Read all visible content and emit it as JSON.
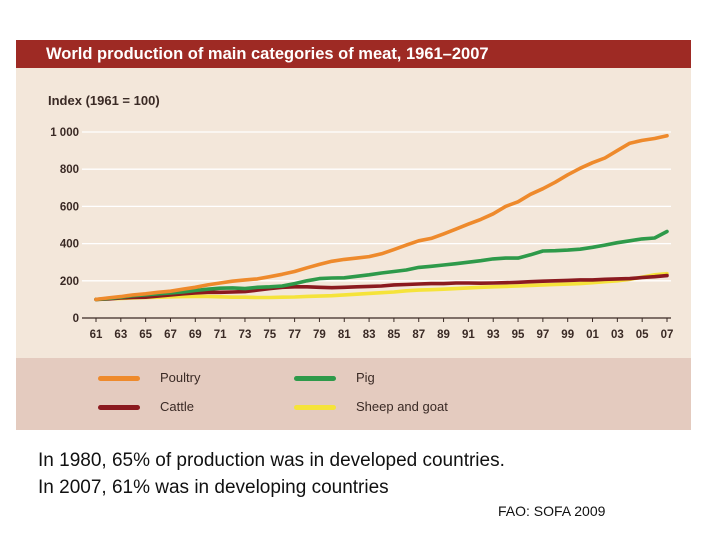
{
  "chart_data": {
    "type": "line",
    "title": "World production of main categories of meat, 1961–2007",
    "ylabel": "Index (1961 = 100)",
    "xlabel": "",
    "ylim": [
      0,
      1000
    ],
    "ytick_values": [
      0,
      200,
      400,
      600,
      800,
      1000
    ],
    "ytick_labels": [
      "0",
      "200",
      "400",
      "600",
      "800",
      "1 000"
    ],
    "x": [
      1961,
      1962,
      1963,
      1964,
      1965,
      1966,
      1967,
      1968,
      1969,
      1970,
      1971,
      1972,
      1973,
      1974,
      1975,
      1976,
      1977,
      1978,
      1979,
      1980,
      1981,
      1982,
      1983,
      1984,
      1985,
      1986,
      1987,
      1988,
      1989,
      1990,
      1991,
      1992,
      1993,
      1994,
      1995,
      1996,
      1997,
      1998,
      1999,
      2000,
      2001,
      2002,
      2003,
      2004,
      2005,
      2006,
      2007
    ],
    "xtick_labels": [
      "61",
      "63",
      "65",
      "67",
      "69",
      "71",
      "73",
      "75",
      "77",
      "79",
      "81",
      "83",
      "85",
      "87",
      "89",
      "91",
      "93",
      "95",
      "97",
      "99",
      "01",
      "03",
      "05",
      "07"
    ],
    "legend_position": "bottom",
    "series": [
      {
        "name": "Poultry",
        "color": "#ee8a2c",
        "values": [
          100,
          108,
          115,
          124,
          130,
          138,
          144,
          155,
          165,
          178,
          188,
          198,
          205,
          210,
          222,
          235,
          250,
          270,
          288,
          305,
          315,
          322,
          330,
          345,
          368,
          392,
          415,
          428,
          452,
          478,
          505,
          530,
          560,
          600,
          625,
          665,
          695,
          730,
          770,
          805,
          835,
          860,
          900,
          940,
          955,
          965,
          980
        ]
      },
      {
        "name": "Pig",
        "color": "#2e9a4a",
        "values": [
          100,
          105,
          112,
          120,
          125,
          130,
          135,
          140,
          148,
          155,
          160,
          162,
          158,
          165,
          168,
          172,
          185,
          200,
          212,
          215,
          216,
          224,
          232,
          242,
          250,
          258,
          272,
          278,
          285,
          292,
          300,
          308,
          318,
          322,
          322,
          340,
          360,
          362,
          365,
          370,
          380,
          392,
          405,
          415,
          425,
          430,
          465
        ]
      },
      {
        "name": "Cattle",
        "color": "#8b1a1f",
        "values": [
          100,
          102,
          108,
          110,
          112,
          118,
          124,
          130,
          135,
          138,
          138,
          140,
          142,
          150,
          158,
          165,
          168,
          168,
          165,
          163,
          165,
          168,
          170,
          172,
          178,
          180,
          183,
          185,
          185,
          188,
          188,
          187,
          188,
          190,
          192,
          195,
          198,
          200,
          202,
          205,
          205,
          208,
          210,
          212,
          218,
          222,
          228
        ]
      },
      {
        "name": "Sheep and goat",
        "color": "#f5e33a",
        "values": [
          100,
          103,
          105,
          108,
          110,
          112,
          114,
          115,
          116,
          116,
          114,
          112,
          112,
          110,
          110,
          112,
          113,
          116,
          118,
          120,
          124,
          128,
          132,
          136,
          140,
          146,
          150,
          152,
          155,
          158,
          162,
          165,
          168,
          170,
          172,
          175,
          178,
          180,
          182,
          185,
          190,
          195,
          200,
          208,
          220,
          232,
          238
        ]
      }
    ]
  },
  "caption": {
    "line1": "In 1980, 65% of production was in developed countries.",
    "line2": "In 2007, 61% was in developing countries"
  },
  "source": "FAO: SOFA 2009"
}
